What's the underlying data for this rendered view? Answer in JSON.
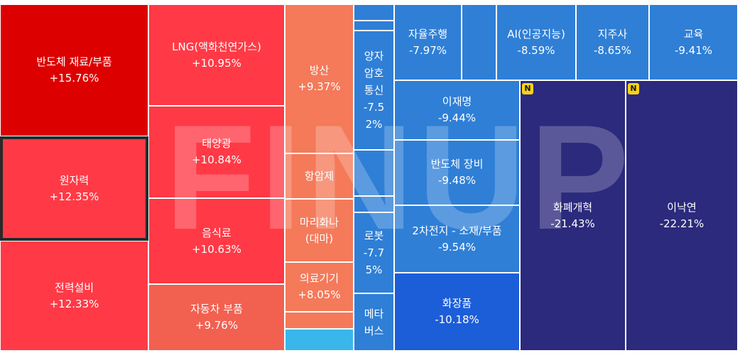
{
  "watermark": "FINUP",
  "colors": {
    "strong_up": "#dd0000",
    "up": "#ff3a46",
    "mid_up": "#f26050",
    "light_up": "#f47a5a",
    "down": "#2f7fd6",
    "mid_down": "#1c5ed8",
    "deep_down": "#2c2a7c",
    "cyan": "#3ab6ea",
    "badge": "#f6d21a"
  },
  "chart_data": {
    "type": "treemap",
    "tiles": [
      {
        "label": "반도체 재료/부품",
        "change": "+15.76%",
        "value": 15.76
      },
      {
        "label": "원자력",
        "change": "+12.35%",
        "value": 12.35,
        "selected": true
      },
      {
        "label": "전력설비",
        "change": "+12.33%",
        "value": 12.33
      },
      {
        "label": "LNG(액화천연가스)",
        "change": "+10.95%",
        "value": 10.95
      },
      {
        "label": "태양광",
        "change": "+10.84%",
        "value": 10.84
      },
      {
        "label": "음식료",
        "change": "+10.63%",
        "value": 10.63
      },
      {
        "label": "자동차 부품",
        "change": "+9.76%",
        "value": 9.76
      },
      {
        "label": "방산",
        "change": "+9.37%",
        "value": 9.37
      },
      {
        "label": "항암제",
        "change": "",
        "value": null
      },
      {
        "label": "마리화나\n(대마)",
        "change": "",
        "value": null
      },
      {
        "label": "의료기기",
        "change": "+8.05%",
        "value": 8.05
      },
      {
        "label": "",
        "change": "",
        "value": null
      },
      {
        "label": "",
        "change": "",
        "value": null
      },
      {
        "label": "",
        "change": "",
        "value": null
      },
      {
        "label": "",
        "change": "",
        "value": null
      },
      {
        "label": "양자\n암호\n통신",
        "change": "-7.5\n2%",
        "value": -7.52
      },
      {
        "label": "",
        "change": "",
        "value": null
      },
      {
        "label": "",
        "change": "",
        "value": null
      },
      {
        "label": "로봇",
        "change": "-7.7\n5%",
        "value": -7.75
      },
      {
        "label": "메타\n버스",
        "change": "",
        "value": null
      },
      {
        "label": "자율주행",
        "change": "-7.97%",
        "value": -7.97
      },
      {
        "label": "",
        "change": "",
        "value": null
      },
      {
        "label": "AI(인공지능)",
        "change": "-8.59%",
        "value": -8.59
      },
      {
        "label": "지주사",
        "change": "-8.65%",
        "value": -8.65
      },
      {
        "label": "교육",
        "change": "-9.41%",
        "value": -9.41
      },
      {
        "label": "이재명",
        "change": "-9.44%",
        "value": -9.44
      },
      {
        "label": "반도체 장비",
        "change": "-9.48%",
        "value": -9.48
      },
      {
        "label": "2차전지 - 소재/부품",
        "change": "-9.54%",
        "value": -9.54
      },
      {
        "label": "화장품",
        "change": "-10.18%",
        "value": -10.18
      },
      {
        "label": "화폐개혁",
        "change": "-21.43%",
        "value": -21.43,
        "badge": "N"
      },
      {
        "label": "이낙연",
        "change": "-22.21%",
        "value": -22.21,
        "badge": "N"
      }
    ]
  }
}
